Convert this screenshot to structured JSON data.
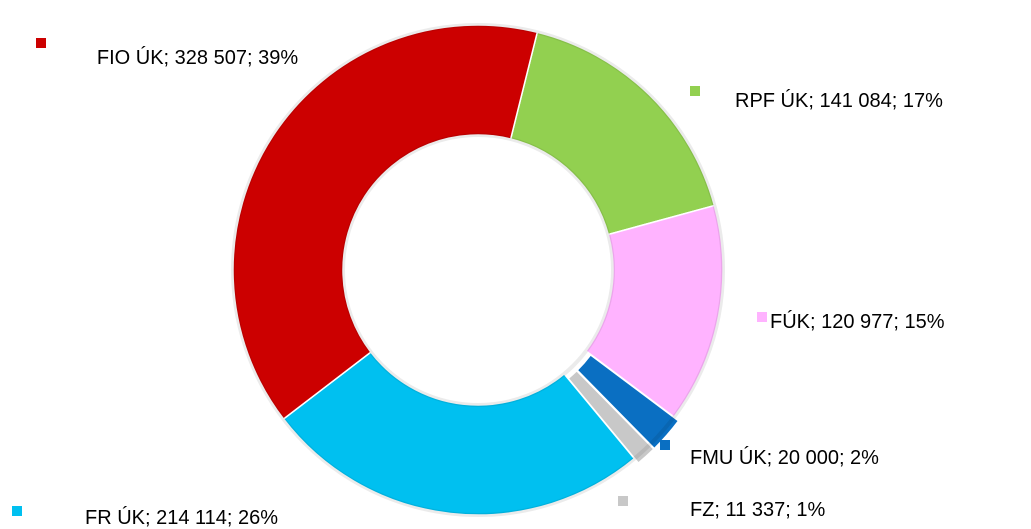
{
  "chart_data": {
    "type": "donut",
    "values": [
      141084,
      120977,
      20000,
      11337,
      214114,
      328507
    ],
    "value_labels": [
      "RPF ÚK; 141 084; 17%",
      "FÚK; 120 977; 15%",
      "FMU ÚK; 20 000; 2%",
      "FZ; 11 337; 1%",
      "FR ÚK; 214 114; 26%",
      "FIO ÚK; 328 507; 39%"
    ],
    "colors": [
      "#92d050",
      "#ffb3ff",
      "#0a6fc2",
      "#c8c8c8",
      "#00c0f0",
      "#cc0000"
    ]
  }
}
